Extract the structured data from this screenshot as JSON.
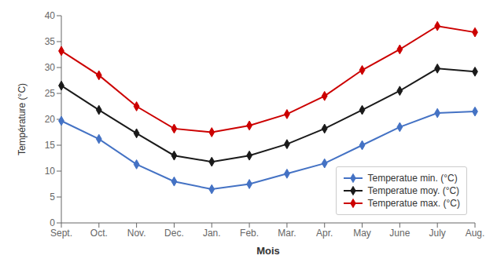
{
  "chart_data": {
    "type": "line",
    "categories": [
      "Sept.",
      "Oct.",
      "Nov.",
      "Dec.",
      "Jan.",
      "Feb.",
      "Mar.",
      "Apr.",
      "May",
      "June",
      "July",
      "Aug."
    ],
    "series": [
      {
        "name": "Temperatue min. (°C)",
        "color": "#4472c4",
        "marker": "diamond",
        "values": [
          19.7,
          16.2,
          11.3,
          8.0,
          6.5,
          7.5,
          9.5,
          11.5,
          15.0,
          18.5,
          21.2,
          21.5
        ]
      },
      {
        "name": "Temperatue moy. (°C)",
        "color": "#1a1a1a",
        "marker": "diamond",
        "values": [
          26.5,
          21.8,
          17.3,
          13.0,
          11.8,
          13.0,
          15.2,
          18.2,
          21.8,
          25.5,
          29.8,
          29.2
        ]
      },
      {
        "name": "Temperatue max. (°C)",
        "color": "#cc0000",
        "marker": "diamond",
        "values": [
          33.2,
          28.5,
          22.5,
          18.2,
          17.5,
          18.8,
          21.0,
          24.5,
          29.5,
          33.5,
          38.0,
          36.8
        ]
      }
    ],
    "xlabel": "Mois",
    "ylabel": "Température (°C)",
    "ylim": [
      0,
      40
    ],
    "yticks": [
      0,
      5,
      10,
      15,
      20,
      25,
      30,
      35,
      40
    ],
    "grid": false,
    "legend": "lower right"
  }
}
